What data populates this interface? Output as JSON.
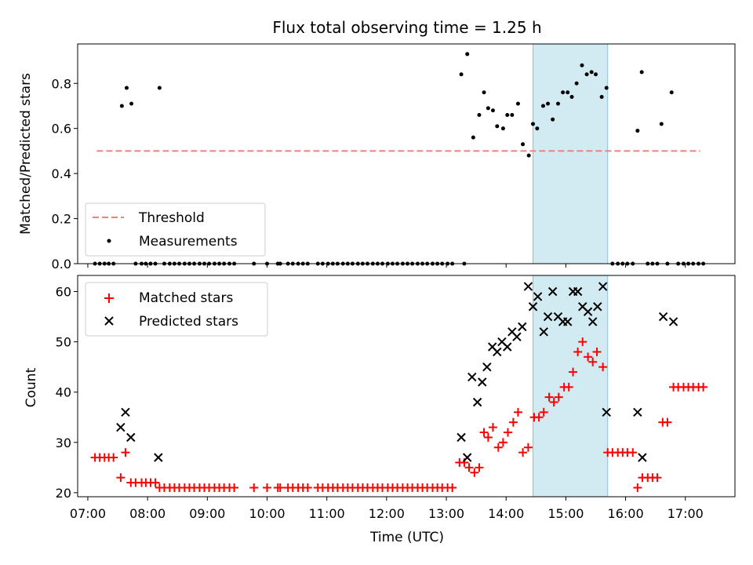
{
  "colors": {
    "threshold": "#f08080",
    "measurements": "#000000",
    "matched": "#ff0000",
    "predicted": "#000000",
    "highlight": "#add8e6"
  },
  "chart_data": [
    {
      "type": "scatter",
      "title": "Flux total observing time = 1.25 h",
      "xlabel": "",
      "ylabel": "Matched/Predicted stars",
      "xlim": [
        6.83,
        17.83
      ],
      "ylim": [
        0.0,
        0.975
      ],
      "yticks": [
        0.0,
        0.2,
        0.4,
        0.6,
        0.8
      ],
      "ytick_labels": [
        "0.0",
        "0.2",
        "0.4",
        "0.6",
        "0.8"
      ],
      "highlight_span": [
        14.45,
        15.7
      ],
      "legend_loc": "lower-left",
      "series": [
        {
          "name": "Threshold",
          "kind": "dashed-line",
          "x": [
            7.15,
            17.25
          ],
          "y": [
            0.5,
            0.5
          ]
        },
        {
          "name": "Measurements",
          "kind": "dot",
          "points": [
            [
              7.57,
              0.7
            ],
            [
              7.65,
              0.78
            ],
            [
              7.73,
              0.71
            ],
            [
              8.2,
              0.78
            ],
            [
              13.25,
              0.84
            ],
            [
              13.35,
              0.93
            ],
            [
              13.45,
              0.56
            ],
            [
              13.55,
              0.66
            ],
            [
              13.63,
              0.76
            ],
            [
              13.7,
              0.69
            ],
            [
              13.78,
              0.68
            ],
            [
              13.85,
              0.61
            ],
            [
              13.95,
              0.6
            ],
            [
              14.02,
              0.66
            ],
            [
              14.1,
              0.66
            ],
            [
              14.2,
              0.71
            ],
            [
              14.28,
              0.53
            ],
            [
              14.38,
              0.48
            ],
            [
              14.45,
              0.62
            ],
            [
              14.52,
              0.6
            ],
            [
              14.62,
              0.7
            ],
            [
              14.7,
              0.71
            ],
            [
              14.78,
              0.64
            ],
            [
              14.87,
              0.71
            ],
            [
              14.95,
              0.76
            ],
            [
              15.03,
              0.76
            ],
            [
              15.1,
              0.74
            ],
            [
              15.18,
              0.8
            ],
            [
              15.27,
              0.88
            ],
            [
              15.35,
              0.84
            ],
            [
              15.43,
              0.85
            ],
            [
              15.5,
              0.84
            ],
            [
              15.6,
              0.74
            ],
            [
              15.68,
              0.78
            ],
            [
              16.2,
              0.59
            ],
            [
              16.27,
              0.85
            ],
            [
              16.6,
              0.62
            ],
            [
              16.77,
              0.76
            ]
          ]
        }
      ]
    },
    {
      "type": "scatter",
      "title": "",
      "xlabel": "Time (UTC)",
      "ylabel": "Count",
      "xlim": [
        6.83,
        17.83
      ],
      "ylim": [
        19.2,
        63.2
      ],
      "yticks": [
        20,
        30,
        40,
        50,
        60
      ],
      "ytick_labels": [
        "20",
        "30",
        "40",
        "50",
        "60"
      ],
      "xticks": [
        7,
        8,
        9,
        10,
        11,
        12,
        13,
        14,
        15,
        16,
        17
      ],
      "xtick_labels": [
        "07:00",
        "08:00",
        "09:00",
        "10:00",
        "11:00",
        "12:00",
        "13:00",
        "14:00",
        "15:00",
        "16:00",
        "17:00"
      ],
      "highlight_span": [
        14.45,
        15.7
      ],
      "legend_loc": "top-left",
      "series": [
        {
          "name": "Matched stars",
          "kind": "plus",
          "points": [
            [
              7.12,
              27
            ],
            [
              7.2,
              27
            ],
            [
              7.28,
              27
            ],
            [
              7.35,
              27
            ],
            [
              7.43,
              27
            ],
            [
              7.55,
              23
            ],
            [
              7.63,
              28
            ],
            [
              7.72,
              22
            ],
            [
              7.8,
              22
            ],
            [
              7.9,
              22
            ],
            [
              7.97,
              22
            ],
            [
              8.05,
              22
            ],
            [
              8.13,
              22
            ],
            [
              8.2,
              21
            ],
            [
              8.28,
              21
            ],
            [
              8.37,
              21
            ],
            [
              8.45,
              21
            ],
            [
              8.53,
              21
            ],
            [
              8.62,
              21
            ],
            [
              8.7,
              21
            ],
            [
              8.78,
              21
            ],
            [
              8.87,
              21
            ],
            [
              8.95,
              21
            ],
            [
              9.03,
              21
            ],
            [
              9.12,
              21
            ],
            [
              9.2,
              21
            ],
            [
              9.28,
              21
            ],
            [
              9.37,
              21
            ],
            [
              9.45,
              21
            ],
            [
              9.78,
              21
            ],
            [
              10.0,
              21
            ],
            [
              10.18,
              21
            ],
            [
              10.22,
              21
            ],
            [
              10.35,
              21
            ],
            [
              10.43,
              21
            ],
            [
              10.52,
              21
            ],
            [
              10.6,
              21
            ],
            [
              10.68,
              21
            ],
            [
              10.85,
              21
            ],
            [
              10.93,
              21
            ],
            [
              11.02,
              21
            ],
            [
              11.1,
              21
            ],
            [
              11.18,
              21
            ],
            [
              11.27,
              21
            ],
            [
              11.35,
              21
            ],
            [
              11.43,
              21
            ],
            [
              11.52,
              21
            ],
            [
              11.6,
              21
            ],
            [
              11.68,
              21
            ],
            [
              11.77,
              21
            ],
            [
              11.85,
              21
            ],
            [
              11.93,
              21
            ],
            [
              12.02,
              21
            ],
            [
              12.1,
              21
            ],
            [
              12.18,
              21
            ],
            [
              12.27,
              21
            ],
            [
              12.35,
              21
            ],
            [
              12.43,
              21
            ],
            [
              12.52,
              21
            ],
            [
              12.6,
              21
            ],
            [
              12.68,
              21
            ],
            [
              12.77,
              21
            ],
            [
              12.85,
              21
            ],
            [
              12.93,
              21
            ],
            [
              13.02,
              21
            ],
            [
              13.1,
              21
            ],
            [
              13.22,
              26
            ],
            [
              13.3,
              26
            ],
            [
              13.38,
              25
            ],
            [
              13.47,
              24
            ],
            [
              13.55,
              25
            ],
            [
              13.63,
              32
            ],
            [
              13.7,
              31
            ],
            [
              13.78,
              33
            ],
            [
              13.87,
              29
            ],
            [
              13.95,
              30
            ],
            [
              14.03,
              32
            ],
            [
              14.12,
              34
            ],
            [
              14.2,
              36
            ],
            [
              14.28,
              28
            ],
            [
              14.37,
              29
            ],
            [
              14.47,
              35
            ],
            [
              14.55,
              35
            ],
            [
              14.63,
              36
            ],
            [
              14.72,
              39
            ],
            [
              14.8,
              38
            ],
            [
              14.88,
              39
            ],
            [
              14.97,
              41
            ],
            [
              15.05,
              41
            ],
            [
              15.12,
              44
            ],
            [
              15.2,
              48
            ],
            [
              15.28,
              50
            ],
            [
              15.37,
              47
            ],
            [
              15.45,
              46
            ],
            [
              15.52,
              48
            ],
            [
              15.62,
              45
            ],
            [
              15.7,
              28
            ],
            [
              15.78,
              28
            ],
            [
              15.87,
              28
            ],
            [
              15.95,
              28
            ],
            [
              16.03,
              28
            ],
            [
              16.12,
              28
            ],
            [
              16.2,
              21
            ],
            [
              16.28,
              23
            ],
            [
              16.37,
              23
            ],
            [
              16.45,
              23
            ],
            [
              16.53,
              23
            ],
            [
              16.62,
              34
            ],
            [
              16.7,
              34
            ],
            [
              16.8,
              41
            ],
            [
              16.88,
              41
            ],
            [
              16.97,
              41
            ],
            [
              17.05,
              41
            ],
            [
              17.13,
              41
            ],
            [
              17.22,
              41
            ],
            [
              17.3,
              41
            ]
          ]
        },
        {
          "name": "Predicted stars",
          "kind": "x",
          "points": [
            [
              7.55,
              33
            ],
            [
              7.63,
              36
            ],
            [
              7.72,
              31
            ],
            [
              8.18,
              27
            ],
            [
              13.25,
              31
            ],
            [
              13.35,
              27
            ],
            [
              13.43,
              43
            ],
            [
              13.52,
              38
            ],
            [
              13.6,
              42
            ],
            [
              13.68,
              45
            ],
            [
              13.77,
              49
            ],
            [
              13.85,
              48
            ],
            [
              13.93,
              50
            ],
            [
              14.02,
              49
            ],
            [
              14.1,
              52
            ],
            [
              14.18,
              51
            ],
            [
              14.27,
              53
            ],
            [
              14.37,
              61
            ],
            [
              14.45,
              57
            ],
            [
              14.53,
              59
            ],
            [
              14.63,
              52
            ],
            [
              14.7,
              55
            ],
            [
              14.78,
              60
            ],
            [
              14.87,
              55
            ],
            [
              14.95,
              54
            ],
            [
              15.03,
              54
            ],
            [
              15.12,
              60
            ],
            [
              15.2,
              60
            ],
            [
              15.28,
              57
            ],
            [
              15.37,
              56
            ],
            [
              15.45,
              54
            ],
            [
              15.53,
              57
            ],
            [
              15.62,
              61
            ],
            [
              15.68,
              36
            ],
            [
              16.2,
              36
            ],
            [
              16.28,
              27
            ],
            [
              16.63,
              55
            ],
            [
              16.8,
              54
            ]
          ]
        }
      ]
    }
  ]
}
